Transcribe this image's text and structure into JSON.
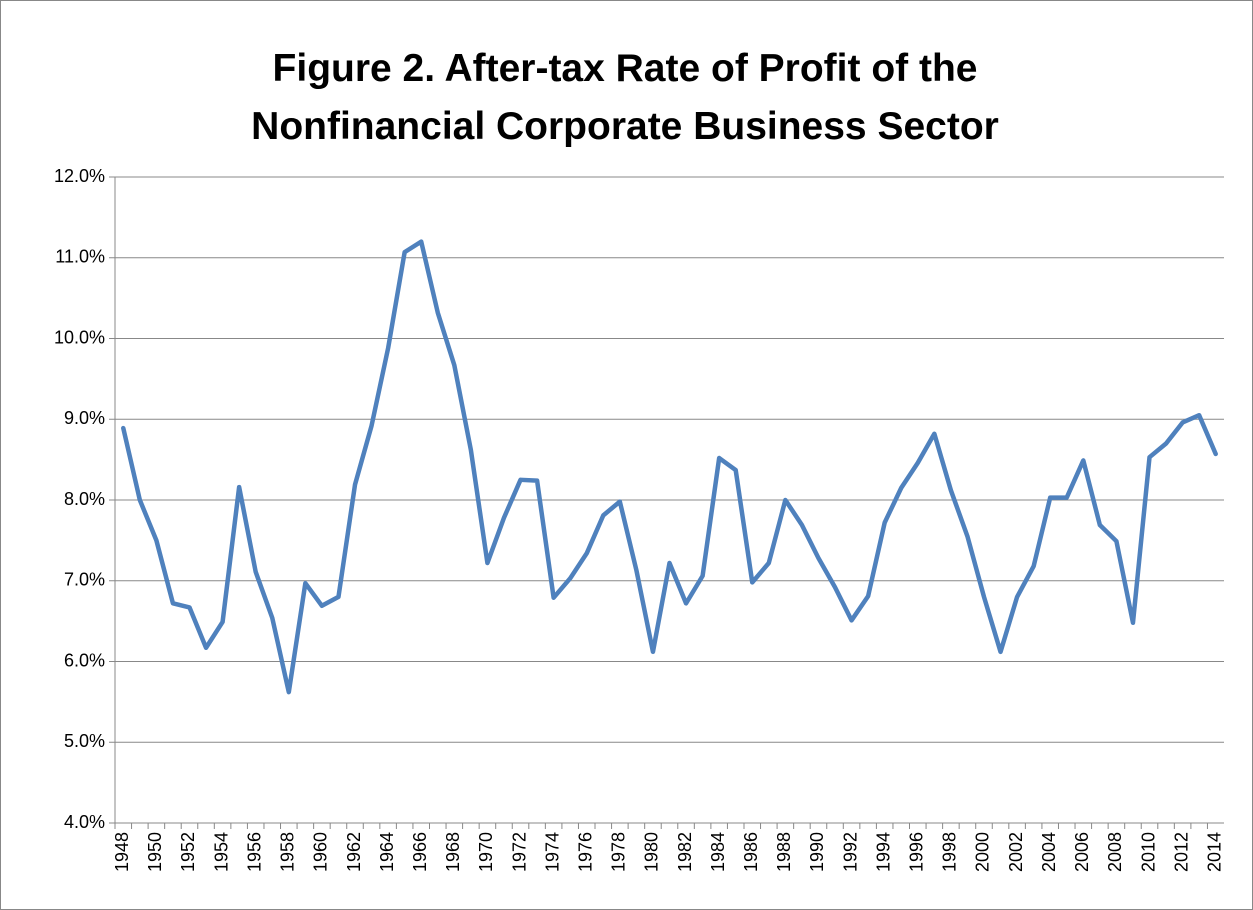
{
  "chart_data": {
    "type": "line",
    "title": "Figure 2. After-tax Rate of Profit of the Nonfinancial Corporate Business Sector",
    "categories": [
      "1948",
      null,
      "1950",
      null,
      "1952",
      null,
      "1954",
      null,
      "1956",
      null,
      "1958",
      null,
      "1960",
      null,
      "1962",
      null,
      "1964",
      null,
      "1966",
      null,
      "1968",
      null,
      "1970",
      null,
      "1972",
      null,
      "1974",
      null,
      "1976",
      null,
      "1978",
      null,
      "1980",
      null,
      "1982",
      null,
      "1984",
      null,
      "1986",
      null,
      "1988",
      null,
      "1990",
      null,
      "1992",
      null,
      "1994",
      null,
      "1996",
      null,
      "1998",
      null,
      "2000",
      null,
      "2002",
      null,
      "2004",
      null,
      "2006",
      null,
      "2008",
      null,
      "2010",
      null,
      "2012",
      null,
      "2014"
    ],
    "series": [
      {
        "color": "#4f81bd",
        "values": [
          8.89,
          8.0,
          7.5,
          6.72,
          6.67,
          6.17,
          6.49,
          8.16,
          7.11,
          6.54,
          5.62,
          6.97,
          6.69,
          6.8,
          8.19,
          8.92,
          9.88,
          11.07,
          11.2,
          10.32,
          9.67,
          8.62,
          7.22,
          7.78,
          8.25,
          8.24,
          6.79,
          7.03,
          7.34,
          7.81,
          7.98,
          7.13,
          6.12,
          7.22,
          6.72,
          7.06,
          8.52,
          8.37,
          6.98,
          7.22,
          8.0,
          7.69,
          7.28,
          6.92,
          6.51,
          6.81,
          7.72,
          8.15,
          8.46,
          8.82,
          8.12,
          7.55,
          6.8,
          6.12,
          6.8,
          7.18,
          8.03,
          8.03,
          8.49,
          7.69,
          7.49,
          6.48,
          8.53,
          8.7,
          8.96,
          9.05,
          8.57
        ]
      }
    ],
    "ylim": [
      4,
      12
    ],
    "yticks": [
      {
        "value": 4,
        "label": "4.0%"
      },
      {
        "value": 5,
        "label": "5.0%"
      },
      {
        "value": 6,
        "label": "6.0%"
      },
      {
        "value": 7,
        "label": "7.0%"
      },
      {
        "value": 8,
        "label": "8.0%"
      },
      {
        "value": 9,
        "label": "9.0%"
      },
      {
        "value": 10,
        "label": "10.0%"
      },
      {
        "value": 11,
        "label": "11.0%"
      },
      {
        "value": 12,
        "label": "12.0%"
      }
    ],
    "grid": true
  }
}
